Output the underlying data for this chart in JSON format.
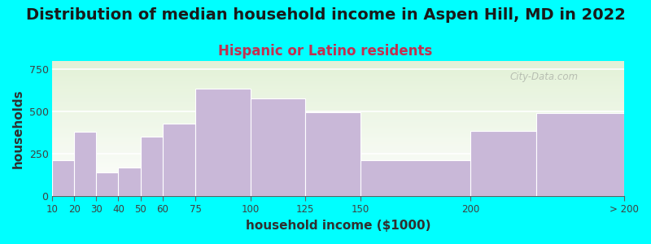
{
  "title": "Distribution of median household income in Aspen Hill, MD in 2022",
  "subtitle": "Hispanic or Latino residents",
  "xlabel": "household income ($1000)",
  "ylabel": "households",
  "bar_color": "#C9B8D8",
  "background_color": "#00FFFF",
  "watermark": "City-Data.com",
  "bar_values": [
    210,
    380,
    140,
    170,
    350,
    430,
    635,
    580,
    495,
    210,
    385,
    490
  ],
  "edges": [
    10,
    20,
    30,
    40,
    50,
    60,
    75,
    100,
    125,
    150,
    200,
    230,
    270
  ],
  "tick_positions": [
    10,
    20,
    30,
    40,
    50,
    60,
    75,
    100,
    125,
    150,
    200,
    270
  ],
  "tick_labels": [
    "10",
    "20",
    "30",
    "40",
    "50",
    "60",
    "75",
    "100",
    "125",
    "150",
    "200",
    "> 200"
  ],
  "ylim": [
    0,
    800
  ],
  "yticks": [
    0,
    250,
    500,
    750
  ],
  "title_fontsize": 14,
  "subtitle_fontsize": 12,
  "axis_label_fontsize": 11
}
